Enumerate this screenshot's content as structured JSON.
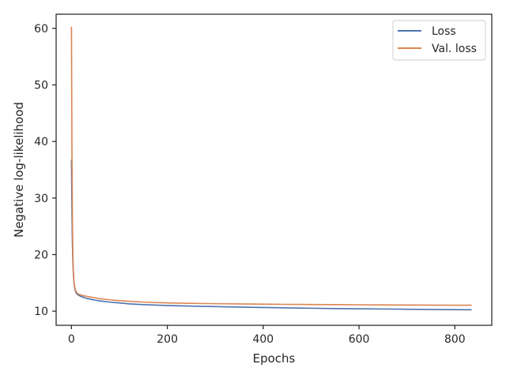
{
  "chart_data": {
    "type": "line",
    "xlabel": "Epochs",
    "ylabel": "Negative log-likelihood",
    "xlim": [
      -32,
      877
    ],
    "ylim": [
      7.5,
      62.5
    ],
    "xticks": [
      0,
      200,
      400,
      600,
      800
    ],
    "yticks": [
      10,
      20,
      30,
      40,
      50,
      60
    ],
    "grid": false,
    "legend_position": "top-right",
    "series": [
      {
        "name": "Loss",
        "color": "#4c72b0",
        "x": [
          0,
          1,
          2,
          3,
          4,
          5,
          6,
          8,
          10,
          12,
          15,
          20,
          25,
          30,
          40,
          50,
          60,
          80,
          100,
          120,
          150,
          200,
          250,
          300,
          350,
          400,
          450,
          500,
          550,
          600,
          650,
          700,
          750,
          800,
          835
        ],
        "y": [
          36.8,
          27.5,
          21.8,
          18.4,
          16.5,
          15.3,
          14.5,
          13.6,
          13.2,
          13.0,
          12.8,
          12.6,
          12.45,
          12.3,
          12.1,
          11.95,
          11.8,
          11.6,
          11.45,
          11.3,
          11.15,
          11.0,
          10.9,
          10.8,
          10.72,
          10.65,
          10.58,
          10.52,
          10.46,
          10.42,
          10.38,
          10.34,
          10.3,
          10.27,
          10.25
        ]
      },
      {
        "name": "Val. loss",
        "color": "#dd8452",
        "x": [
          0,
          1,
          2,
          3,
          4,
          5,
          6,
          8,
          10,
          12,
          15,
          20,
          25,
          30,
          40,
          50,
          60,
          80,
          100,
          120,
          150,
          200,
          250,
          300,
          350,
          400,
          450,
          500,
          550,
          600,
          650,
          700,
          750,
          800,
          835
        ],
        "y": [
          60.3,
          38.0,
          26.0,
          19.8,
          17.0,
          15.6,
          14.7,
          13.8,
          13.4,
          13.2,
          13.0,
          12.85,
          12.75,
          12.65,
          12.5,
          12.35,
          12.2,
          12.0,
          11.85,
          11.75,
          11.6,
          11.45,
          11.38,
          11.32,
          11.28,
          11.25,
          11.2,
          11.18,
          11.15,
          11.13,
          11.1,
          11.08,
          11.07,
          11.05,
          11.05
        ]
      }
    ]
  }
}
